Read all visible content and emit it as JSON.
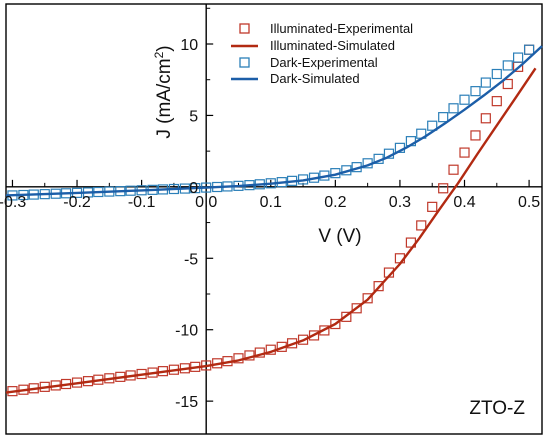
{
  "chart_data": {
    "type": "line",
    "xlabel": "V (V)",
    "ylabel_main": "J (mA/cm",
    "ylabel_sup": "2",
    "ylabel_close": ")",
    "xlim": [
      -0.31,
      0.52
    ],
    "ylim": [
      -17.3,
      12.8
    ],
    "x_ticks": [
      -0.3,
      -0.2,
      -0.1,
      0.0,
      0.1,
      0.2,
      0.3,
      0.4,
      0.5
    ],
    "x_tick_labels": [
      "-0.3",
      "-0.2",
      "-0.1",
      "0.0",
      "0.1",
      "0.2",
      "0.3",
      "0.4",
      "0.5"
    ],
    "y_ticks": [
      -15,
      -10,
      -5,
      0,
      5,
      10
    ],
    "y_tick_labels": [
      "-15",
      "-10",
      "-5",
      "0",
      "5",
      "10"
    ],
    "grid": false,
    "legend_position": "top-right",
    "annotation": "ZTO-Z",
    "series": [
      {
        "name": "Illuminated-Experimental",
        "kind": "markers",
        "color": "#c0392b",
        "x": [
          -0.3,
          -0.283,
          -0.267,
          -0.25,
          -0.233,
          -0.217,
          -0.2,
          -0.183,
          -0.167,
          -0.15,
          -0.133,
          -0.117,
          -0.1,
          -0.083,
          -0.067,
          -0.05,
          -0.033,
          -0.017,
          0.0,
          0.017,
          0.033,
          0.05,
          0.067,
          0.083,
          0.1,
          0.117,
          0.133,
          0.15,
          0.167,
          0.183,
          0.2,
          0.217,
          0.233,
          0.25,
          0.267,
          0.283,
          0.3,
          0.317,
          0.333,
          0.35,
          0.367,
          0.383,
          0.4,
          0.417,
          0.433,
          0.45,
          0.467,
          0.483,
          0.5
        ],
        "y": [
          -14.3,
          -14.2,
          -14.1,
          -14.0,
          -13.9,
          -13.8,
          -13.7,
          -13.6,
          -13.5,
          -13.4,
          -13.3,
          -13.2,
          -13.1,
          -13.0,
          -12.9,
          -12.8,
          -12.7,
          -12.6,
          -12.5,
          -12.35,
          -12.2,
          -12.0,
          -11.8,
          -11.6,
          -11.4,
          -11.2,
          -10.95,
          -10.7,
          -10.4,
          -10.05,
          -9.6,
          -9.1,
          -8.5,
          -7.8,
          -6.95,
          -6.0,
          -5.0,
          -3.9,
          -2.7,
          -1.4,
          -0.1,
          1.2,
          2.4,
          3.6,
          4.8,
          6.0,
          7.2,
          8.4,
          9.6
        ]
      },
      {
        "name": "Illuminated-Simulated",
        "kind": "line",
        "color": "#b22a12",
        "x": [
          -0.31,
          -0.2,
          -0.1,
          0.0,
          0.05,
          0.1,
          0.15,
          0.2,
          0.25,
          0.3,
          0.33,
          0.36,
          0.39,
          0.42,
          0.45,
          0.48,
          0.51
        ],
        "y": [
          -14.4,
          -13.75,
          -13.15,
          -12.55,
          -12.15,
          -11.55,
          -10.75,
          -9.6,
          -7.9,
          -5.4,
          -3.6,
          -1.65,
          0.25,
          2.3,
          4.3,
          6.3,
          8.3
        ]
      },
      {
        "name": "Dark-Experimental",
        "kind": "markers",
        "color": "#2b7fb8",
        "x": [
          -0.3,
          -0.283,
          -0.267,
          -0.25,
          -0.233,
          -0.217,
          -0.2,
          -0.183,
          -0.167,
          -0.15,
          -0.133,
          -0.117,
          -0.1,
          -0.083,
          -0.067,
          -0.05,
          -0.033,
          -0.017,
          0.0,
          0.017,
          0.033,
          0.05,
          0.067,
          0.083,
          0.1,
          0.117,
          0.133,
          0.15,
          0.167,
          0.183,
          0.2,
          0.217,
          0.233,
          0.25,
          0.267,
          0.283,
          0.3,
          0.317,
          0.333,
          0.35,
          0.367,
          0.383,
          0.4,
          0.417,
          0.433,
          0.45,
          0.467,
          0.483,
          0.5
        ],
        "y": [
          -0.6,
          -0.57,
          -0.54,
          -0.51,
          -0.48,
          -0.45,
          -0.42,
          -0.39,
          -0.36,
          -0.33,
          -0.3,
          -0.27,
          -0.24,
          -0.21,
          -0.18,
          -0.15,
          -0.12,
          -0.09,
          -0.05,
          -0.01,
          0.03,
          0.07,
          0.12,
          0.18,
          0.25,
          0.33,
          0.42,
          0.52,
          0.64,
          0.79,
          0.96,
          1.16,
          1.38,
          1.65,
          1.96,
          2.32,
          2.73,
          3.2,
          3.72,
          4.28,
          4.88,
          5.5,
          6.1,
          6.7,
          7.3,
          7.9,
          8.5,
          9.05,
          9.6
        ]
      },
      {
        "name": "Dark-Simulated",
        "kind": "line",
        "color": "#1c5ea8",
        "x": [
          -0.31,
          -0.2,
          -0.1,
          0.0,
          0.05,
          0.1,
          0.15,
          0.2,
          0.25,
          0.28,
          0.31,
          0.34,
          0.37,
          0.4,
          0.43,
          0.46,
          0.49,
          0.52
        ],
        "y": [
          -0.6,
          -0.42,
          -0.25,
          -0.05,
          0.05,
          0.22,
          0.45,
          0.85,
          1.5,
          2.05,
          2.75,
          3.55,
          4.45,
          5.4,
          6.4,
          7.45,
          8.6,
          9.85
        ]
      }
    ]
  }
}
